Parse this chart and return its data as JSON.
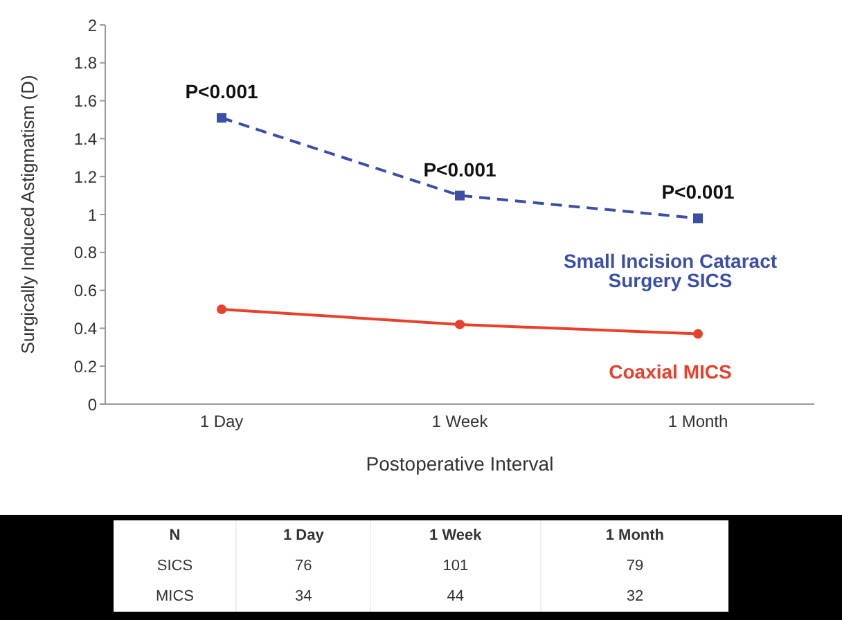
{
  "chart_data": {
    "type": "line",
    "xlabel": "Postoperative Interval",
    "ylabel": "Surgically Induced Astigmatism (D)",
    "categories": [
      "1 Day",
      "1 Week",
      "1 Month"
    ],
    "series": [
      {
        "name": "Small Incision Cataract Surgery SICS",
        "color": "#3c4fa8",
        "values": [
          1.51,
          1.1,
          0.98
        ],
        "line_style": "dashed",
        "marker": "square"
      },
      {
        "name": "Coaxial MICS",
        "color": "#e8402a",
        "values": [
          0.5,
          0.42,
          0.37
        ],
        "line_style": "solid",
        "marker": "circle"
      }
    ],
    "ylim": [
      0,
      2
    ],
    "yticks": [
      0,
      0.2,
      0.4,
      0.6,
      0.8,
      1,
      1.2,
      1.4,
      1.6,
      1.8,
      2
    ],
    "grid": false,
    "legend": false,
    "annotations": [
      {
        "text": "P<0.001",
        "x": "1 Day",
        "y": 1.51
      },
      {
        "text": "P<0.001",
        "x": "1 Week",
        "y": 1.1
      },
      {
        "text": "P<0.001",
        "x": "1 Month",
        "y": 0.98
      },
      "N",
      "1 Day",
      "1 Week",
      "1 Month",
      "SICS",
      "76",
      "101",
      "79",
      "MICS",
      "34",
      "44",
      "32"
    ]
  }
}
